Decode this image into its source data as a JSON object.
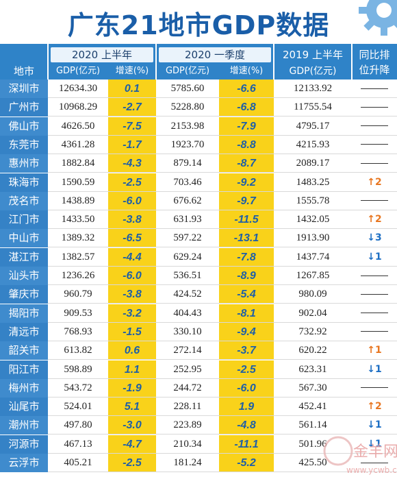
{
  "title": "广东21地市GDP数据",
  "header": {
    "city": "地市",
    "g2020h1": "2020 上半年",
    "g2020q1": "2020 一季度",
    "g2019h1_line1": "2019 上半年",
    "g2019h1_line2": "GDP(亿元)",
    "rank_line1": "同比排",
    "rank_line2": "位升降",
    "gdp": "GDP(亿元)",
    "growth": "增速(%)"
  },
  "rows": [
    {
      "city": "深圳市",
      "h1_gdp": "12634.30",
      "h1_growth": "0.1",
      "q1_gdp": "5785.60",
      "q1_growth": "-6.6",
      "prev": "12133.92",
      "rank": ""
    },
    {
      "city": "广州市",
      "h1_gdp": "10968.29",
      "h1_growth": "-2.7",
      "q1_gdp": "5228.80",
      "q1_growth": "-6.8",
      "prev": "11755.54",
      "rank": ""
    },
    {
      "city": "佛山市",
      "h1_gdp": "4626.50",
      "h1_growth": "-7.5",
      "q1_gdp": "2153.98",
      "q1_growth": "-7.9",
      "prev": "4795.17",
      "rank": ""
    },
    {
      "city": "东莞市",
      "h1_gdp": "4361.28",
      "h1_growth": "-1.7",
      "q1_gdp": "1923.70",
      "q1_growth": "-8.8",
      "prev": "4215.93",
      "rank": ""
    },
    {
      "city": "惠州市",
      "h1_gdp": "1882.84",
      "h1_growth": "-4.3",
      "q1_gdp": "879.14",
      "q1_growth": "-8.7",
      "prev": "2089.17",
      "rank": ""
    },
    {
      "city": "珠海市",
      "h1_gdp": "1590.59",
      "h1_growth": "-2.5",
      "q1_gdp": "703.46",
      "q1_growth": "-9.2",
      "prev": "1483.25",
      "rank": "↑2"
    },
    {
      "city": "茂名市",
      "h1_gdp": "1438.89",
      "h1_growth": "-6.0",
      "q1_gdp": "676.62",
      "q1_growth": "-9.7",
      "prev": "1555.78",
      "rank": ""
    },
    {
      "city": "江门市",
      "h1_gdp": "1433.50",
      "h1_growth": "-3.8",
      "q1_gdp": "631.93",
      "q1_growth": "-11.5",
      "prev": "1432.05",
      "rank": "↑2"
    },
    {
      "city": "中山市",
      "h1_gdp": "1389.32",
      "h1_growth": "-6.5",
      "q1_gdp": "597.22",
      "q1_growth": "-13.1",
      "prev": "1913.90",
      "rank": "↓3"
    },
    {
      "city": "湛江市",
      "h1_gdp": "1382.57",
      "h1_growth": "-4.4",
      "q1_gdp": "629.24",
      "q1_growth": "-7.8",
      "prev": "1437.74",
      "rank": "↓1"
    },
    {
      "city": "汕头市",
      "h1_gdp": "1236.26",
      "h1_growth": "-6.0",
      "q1_gdp": "536.51",
      "q1_growth": "-8.9",
      "prev": "1267.85",
      "rank": ""
    },
    {
      "city": "肇庆市",
      "h1_gdp": "960.79",
      "h1_growth": "-3.8",
      "q1_gdp": "424.52",
      "q1_growth": "-5.4",
      "prev": "980.09",
      "rank": ""
    },
    {
      "city": "揭阳市",
      "h1_gdp": "909.53",
      "h1_growth": "-3.2",
      "q1_gdp": "404.43",
      "q1_growth": "-8.1",
      "prev": "902.04",
      "rank": ""
    },
    {
      "city": "清远市",
      "h1_gdp": "768.93",
      "h1_growth": "-1.5",
      "q1_gdp": "330.10",
      "q1_growth": "-9.4",
      "prev": "732.92",
      "rank": ""
    },
    {
      "city": "韶关市",
      "h1_gdp": "613.82",
      "h1_growth": "0.6",
      "q1_gdp": "272.14",
      "q1_growth": "-3.7",
      "prev": "620.22",
      "rank": "↑1"
    },
    {
      "city": "阳江市",
      "h1_gdp": "598.89",
      "h1_growth": "1.1",
      "q1_gdp": "252.95",
      "q1_growth": "-2.5",
      "prev": "623.31",
      "rank": "↓1"
    },
    {
      "city": "梅州市",
      "h1_gdp": "543.72",
      "h1_growth": "-1.9",
      "q1_gdp": "244.72",
      "q1_growth": "-6.0",
      "prev": "567.30",
      "rank": ""
    },
    {
      "city": "汕尾市",
      "h1_gdp": "524.01",
      "h1_growth": "5.1",
      "q1_gdp": "228.11",
      "q1_growth": "1.9",
      "prev": "452.41",
      "rank": "↑2"
    },
    {
      "city": "潮州市",
      "h1_gdp": "497.80",
      "h1_growth": "-3.0",
      "q1_gdp": "223.89",
      "q1_growth": "-4.8",
      "prev": "561.14",
      "rank": "↓1"
    },
    {
      "city": "河源市",
      "h1_gdp": "467.13",
      "h1_growth": "-4.7",
      "q1_gdp": "210.34",
      "q1_growth": "-11.1",
      "prev": "501.96",
      "rank": "↓1"
    },
    {
      "city": "云浮市",
      "h1_gdp": "405.21",
      "h1_growth": "-2.5",
      "q1_gdp": "181.24",
      "q1_growth": "-5.2",
      "prev": "425.50",
      "rank": ""
    }
  ],
  "watermark": {
    "text": "金羊网",
    "sub": "www.ycwb.com"
  },
  "colors": {
    "title": "#1a5ea8",
    "header": "#2f83c8",
    "growth_fill": "#f9d21a",
    "up": "#e87722",
    "down": "#1e6fc4"
  }
}
